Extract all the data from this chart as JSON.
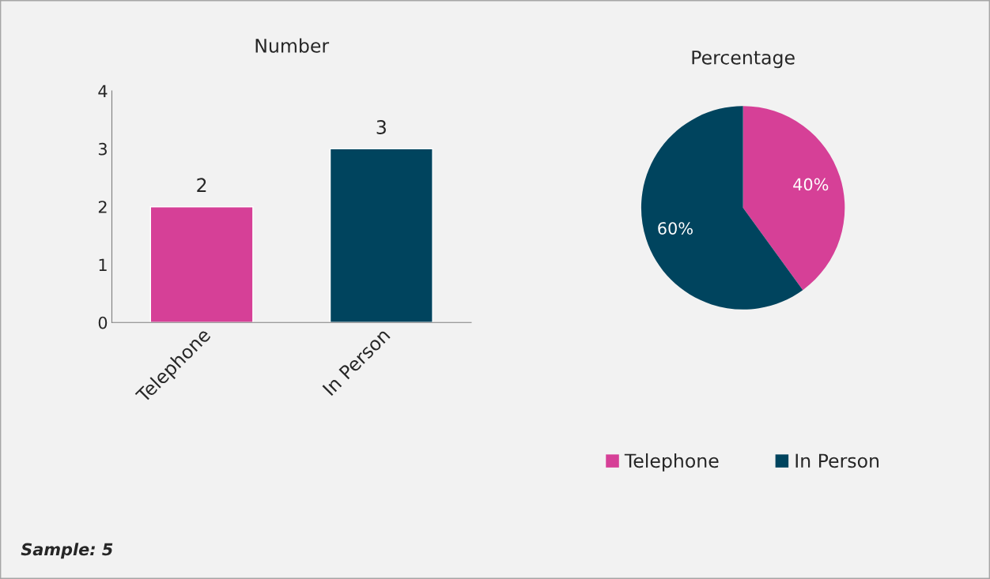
{
  "chart_data": [
    {
      "type": "bar",
      "title": "Number",
      "categories": [
        "Telephone",
        "In Person"
      ],
      "values": [
        2,
        3
      ],
      "colors": [
        "#d64097",
        "#00445e"
      ],
      "ylim": [
        0,
        4
      ],
      "yticks": [
        0,
        1,
        2,
        3,
        4
      ],
      "grid": false,
      "data_labels": true,
      "legend": false,
      "annotations": [
        "Sample: 5"
      ]
    },
    {
      "type": "pie",
      "title": "Percentage",
      "categories": [
        "Telephone",
        "In Person"
      ],
      "values": [
        40,
        60
      ],
      "colors": [
        "#d64097",
        "#00445e"
      ],
      "value_labels": [
        "40%",
        "60%"
      ],
      "legend": "bottom"
    }
  ]
}
